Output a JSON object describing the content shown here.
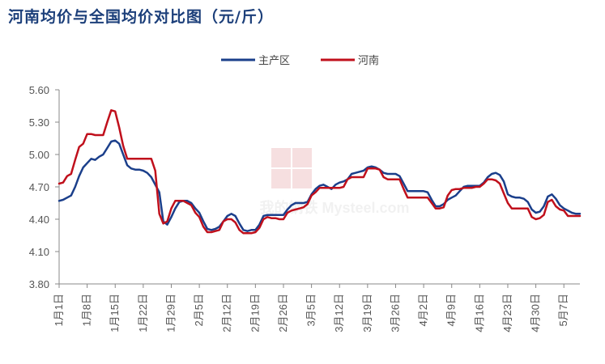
{
  "title": "河南均价与全国均价对比图（元/斤）",
  "watermark": "我的钢铁 Mysteel.com",
  "colors": {
    "zhuchanqu": "#1b3f8b",
    "henan": "#c0101c",
    "axis": "#888888"
  },
  "chart_data": {
    "type": "line",
    "title": "河南均价与全国均价对比图（元/斤）",
    "ylim": [
      3.8,
      5.6
    ],
    "yticks": [
      3.8,
      4.1,
      4.4,
      4.7,
      5.0,
      5.3,
      5.6
    ],
    "ytick_labels": [
      "3.80",
      "4.10",
      "4.40",
      "4.70",
      "5.00",
      "5.30",
      "5.60"
    ],
    "xticks": [
      {
        "label": "1月1日",
        "day": 1
      },
      {
        "label": "1月8日",
        "day": 8
      },
      {
        "label": "1月15日",
        "day": 15
      },
      {
        "label": "1月22日",
        "day": 22
      },
      {
        "label": "1月29日",
        "day": 29
      },
      {
        "label": "2月5日",
        "day": 36
      },
      {
        "label": "2月12日",
        "day": 43
      },
      {
        "label": "2月19日",
        "day": 50
      },
      {
        "label": "2月26日",
        "day": 57
      },
      {
        "label": "3月5日",
        "day": 64
      },
      {
        "label": "3月12日",
        "day": 71
      },
      {
        "label": "3月19日",
        "day": 78
      },
      {
        "label": "3月26日",
        "day": 85
      },
      {
        "label": "4月2日",
        "day": 92
      },
      {
        "label": "4月9日",
        "day": 99
      },
      {
        "label": "4月16日",
        "day": 106
      },
      {
        "label": "4月23日",
        "day": 113
      },
      {
        "label": "4月30日",
        "day": 120
      },
      {
        "label": "5月7日",
        "day": 127
      }
    ],
    "legend_position": "top",
    "grid": false,
    "series": [
      {
        "name": "主产区",
        "points": [
          [
            1,
            4.57
          ],
          [
            2,
            4.58
          ],
          [
            3,
            4.6
          ],
          [
            4,
            4.62
          ],
          [
            5,
            4.7
          ],
          [
            6,
            4.8
          ],
          [
            7,
            4.88
          ],
          [
            8,
            4.92
          ],
          [
            9,
            4.96
          ],
          [
            10,
            4.95
          ],
          [
            11,
            4.98
          ],
          [
            12,
            5.0
          ],
          [
            13,
            5.06
          ],
          [
            14,
            5.12
          ],
          [
            15,
            5.13
          ],
          [
            16,
            5.1
          ],
          [
            17,
            5.0
          ],
          [
            18,
            4.9
          ],
          [
            19,
            4.87
          ],
          [
            20,
            4.86
          ],
          [
            21,
            4.86
          ],
          [
            22,
            4.85
          ],
          [
            23,
            4.83
          ],
          [
            24,
            4.79
          ],
          [
            25,
            4.72
          ],
          [
            26,
            4.65
          ],
          [
            27,
            4.38
          ],
          [
            28,
            4.35
          ],
          [
            29,
            4.42
          ],
          [
            30,
            4.5
          ],
          [
            31,
            4.56
          ],
          [
            32,
            4.57
          ],
          [
            33,
            4.57
          ],
          [
            34,
            4.55
          ],
          [
            35,
            4.5
          ],
          [
            36,
            4.46
          ],
          [
            37,
            4.38
          ],
          [
            38,
            4.31
          ],
          [
            39,
            4.3
          ],
          [
            40,
            4.31
          ],
          [
            41,
            4.33
          ],
          [
            42,
            4.38
          ],
          [
            43,
            4.43
          ],
          [
            44,
            4.45
          ],
          [
            45,
            4.43
          ],
          [
            46,
            4.36
          ],
          [
            47,
            4.3
          ],
          [
            48,
            4.29
          ],
          [
            49,
            4.3
          ],
          [
            50,
            4.3
          ],
          [
            51,
            4.35
          ],
          [
            52,
            4.43
          ],
          [
            53,
            4.44
          ],
          [
            54,
            4.44
          ],
          [
            55,
            4.44
          ],
          [
            56,
            4.44
          ],
          [
            57,
            4.44
          ],
          [
            58,
            4.49
          ],
          [
            59,
            4.53
          ],
          [
            60,
            4.55
          ],
          [
            61,
            4.55
          ],
          [
            62,
            4.55
          ],
          [
            63,
            4.56
          ],
          [
            64,
            4.63
          ],
          [
            65,
            4.68
          ],
          [
            66,
            4.71
          ],
          [
            67,
            4.72
          ],
          [
            68,
            4.7
          ],
          [
            69,
            4.68
          ],
          [
            70,
            4.72
          ],
          [
            71,
            4.74
          ],
          [
            72,
            4.75
          ],
          [
            73,
            4.77
          ],
          [
            74,
            4.82
          ],
          [
            75,
            4.83
          ],
          [
            76,
            4.84
          ],
          [
            77,
            4.85
          ],
          [
            78,
            4.88
          ],
          [
            79,
            4.89
          ],
          [
            80,
            4.88
          ],
          [
            81,
            4.86
          ],
          [
            82,
            4.83
          ],
          [
            83,
            4.82
          ],
          [
            84,
            4.82
          ],
          [
            85,
            4.82
          ],
          [
            86,
            4.8
          ],
          [
            87,
            4.73
          ],
          [
            88,
            4.66
          ],
          [
            89,
            4.66
          ],
          [
            90,
            4.66
          ],
          [
            91,
            4.66
          ],
          [
            92,
            4.66
          ],
          [
            93,
            4.65
          ],
          [
            94,
            4.58
          ],
          [
            95,
            4.52
          ],
          [
            96,
            4.52
          ],
          [
            97,
            4.54
          ],
          [
            98,
            4.58
          ],
          [
            99,
            4.6
          ],
          [
            100,
            4.62
          ],
          [
            101,
            4.66
          ],
          [
            102,
            4.7
          ],
          [
            103,
            4.71
          ],
          [
            104,
            4.71
          ],
          [
            105,
            4.71
          ],
          [
            106,
            4.71
          ],
          [
            107,
            4.74
          ],
          [
            108,
            4.79
          ],
          [
            109,
            4.82
          ],
          [
            110,
            4.83
          ],
          [
            111,
            4.81
          ],
          [
            112,
            4.75
          ],
          [
            113,
            4.63
          ],
          [
            114,
            4.61
          ],
          [
            115,
            4.6
          ],
          [
            116,
            4.6
          ],
          [
            117,
            4.59
          ],
          [
            118,
            4.56
          ],
          [
            119,
            4.49
          ],
          [
            120,
            4.46
          ],
          [
            121,
            4.47
          ],
          [
            122,
            4.52
          ],
          [
            123,
            4.61
          ],
          [
            124,
            4.63
          ],
          [
            125,
            4.59
          ],
          [
            126,
            4.53
          ],
          [
            127,
            4.5
          ],
          [
            128,
            4.48
          ],
          [
            129,
            4.46
          ],
          [
            130,
            4.45
          ],
          [
            131,
            4.45
          ]
        ]
      },
      {
        "name": "河南",
        "points": [
          [
            1,
            4.73
          ],
          [
            2,
            4.74
          ],
          [
            3,
            4.8
          ],
          [
            4,
            4.82
          ],
          [
            5,
            4.95
          ],
          [
            6,
            5.07
          ],
          [
            7,
            5.1
          ],
          [
            8,
            5.19
          ],
          [
            9,
            5.19
          ],
          [
            10,
            5.18
          ],
          [
            11,
            5.18
          ],
          [
            12,
            5.18
          ],
          [
            13,
            5.3
          ],
          [
            14,
            5.41
          ],
          [
            15,
            5.4
          ],
          [
            16,
            5.25
          ],
          [
            17,
            5.08
          ],
          [
            18,
            4.96
          ],
          [
            19,
            4.96
          ],
          [
            20,
            4.96
          ],
          [
            21,
            4.96
          ],
          [
            22,
            4.96
          ],
          [
            23,
            4.96
          ],
          [
            24,
            4.96
          ],
          [
            25,
            4.85
          ],
          [
            26,
            4.45
          ],
          [
            27,
            4.36
          ],
          [
            28,
            4.38
          ],
          [
            29,
            4.5
          ],
          [
            30,
            4.57
          ],
          [
            31,
            4.57
          ],
          [
            32,
            4.57
          ],
          [
            33,
            4.55
          ],
          [
            34,
            4.53
          ],
          [
            35,
            4.46
          ],
          [
            36,
            4.42
          ],
          [
            37,
            4.33
          ],
          [
            38,
            4.28
          ],
          [
            39,
            4.28
          ],
          [
            40,
            4.29
          ],
          [
            41,
            4.3
          ],
          [
            42,
            4.38
          ],
          [
            43,
            4.4
          ],
          [
            44,
            4.4
          ],
          [
            45,
            4.37
          ],
          [
            46,
            4.3
          ],
          [
            47,
            4.27
          ],
          [
            48,
            4.27
          ],
          [
            49,
            4.27
          ],
          [
            50,
            4.28
          ],
          [
            51,
            4.32
          ],
          [
            52,
            4.4
          ],
          [
            53,
            4.42
          ],
          [
            54,
            4.41
          ],
          [
            55,
            4.41
          ],
          [
            56,
            4.4
          ],
          [
            57,
            4.4
          ],
          [
            58,
            4.46
          ],
          [
            59,
            4.48
          ],
          [
            60,
            4.49
          ],
          [
            61,
            4.5
          ],
          [
            62,
            4.51
          ],
          [
            63,
            4.54
          ],
          [
            64,
            4.62
          ],
          [
            65,
            4.65
          ],
          [
            66,
            4.69
          ],
          [
            67,
            4.69
          ],
          [
            68,
            4.69
          ],
          [
            69,
            4.69
          ],
          [
            70,
            4.69
          ],
          [
            71,
            4.69
          ],
          [
            72,
            4.7
          ],
          [
            73,
            4.77
          ],
          [
            74,
            4.79
          ],
          [
            75,
            4.79
          ],
          [
            76,
            4.79
          ],
          [
            77,
            4.79
          ],
          [
            78,
            4.87
          ],
          [
            79,
            4.87
          ],
          [
            80,
            4.87
          ],
          [
            81,
            4.86
          ],
          [
            82,
            4.79
          ],
          [
            83,
            4.77
          ],
          [
            84,
            4.77
          ],
          [
            85,
            4.77
          ],
          [
            86,
            4.77
          ],
          [
            87,
            4.68
          ],
          [
            88,
            4.6
          ],
          [
            89,
            4.6
          ],
          [
            90,
            4.6
          ],
          [
            91,
            4.6
          ],
          [
            92,
            4.6
          ],
          [
            93,
            4.6
          ],
          [
            94,
            4.55
          ],
          [
            95,
            4.5
          ],
          [
            96,
            4.5
          ],
          [
            97,
            4.51
          ],
          [
            98,
            4.62
          ],
          [
            99,
            4.67
          ],
          [
            100,
            4.68
          ],
          [
            101,
            4.68
          ],
          [
            102,
            4.69
          ],
          [
            103,
            4.69
          ],
          [
            104,
            4.69
          ],
          [
            105,
            4.7
          ],
          [
            106,
            4.7
          ],
          [
            107,
            4.73
          ],
          [
            108,
            4.77
          ],
          [
            109,
            4.77
          ],
          [
            110,
            4.76
          ],
          [
            111,
            4.73
          ],
          [
            112,
            4.64
          ],
          [
            113,
            4.55
          ],
          [
            114,
            4.5
          ],
          [
            115,
            4.5
          ],
          [
            116,
            4.5
          ],
          [
            117,
            4.5
          ],
          [
            118,
            4.5
          ],
          [
            119,
            4.42
          ],
          [
            120,
            4.4
          ],
          [
            121,
            4.41
          ],
          [
            122,
            4.44
          ],
          [
            123,
            4.56
          ],
          [
            124,
            4.58
          ],
          [
            125,
            4.52
          ],
          [
            126,
            4.49
          ],
          [
            127,
            4.48
          ],
          [
            128,
            4.43
          ],
          [
            129,
            4.43
          ],
          [
            130,
            4.43
          ],
          [
            131,
            4.43
          ]
        ]
      }
    ]
  }
}
